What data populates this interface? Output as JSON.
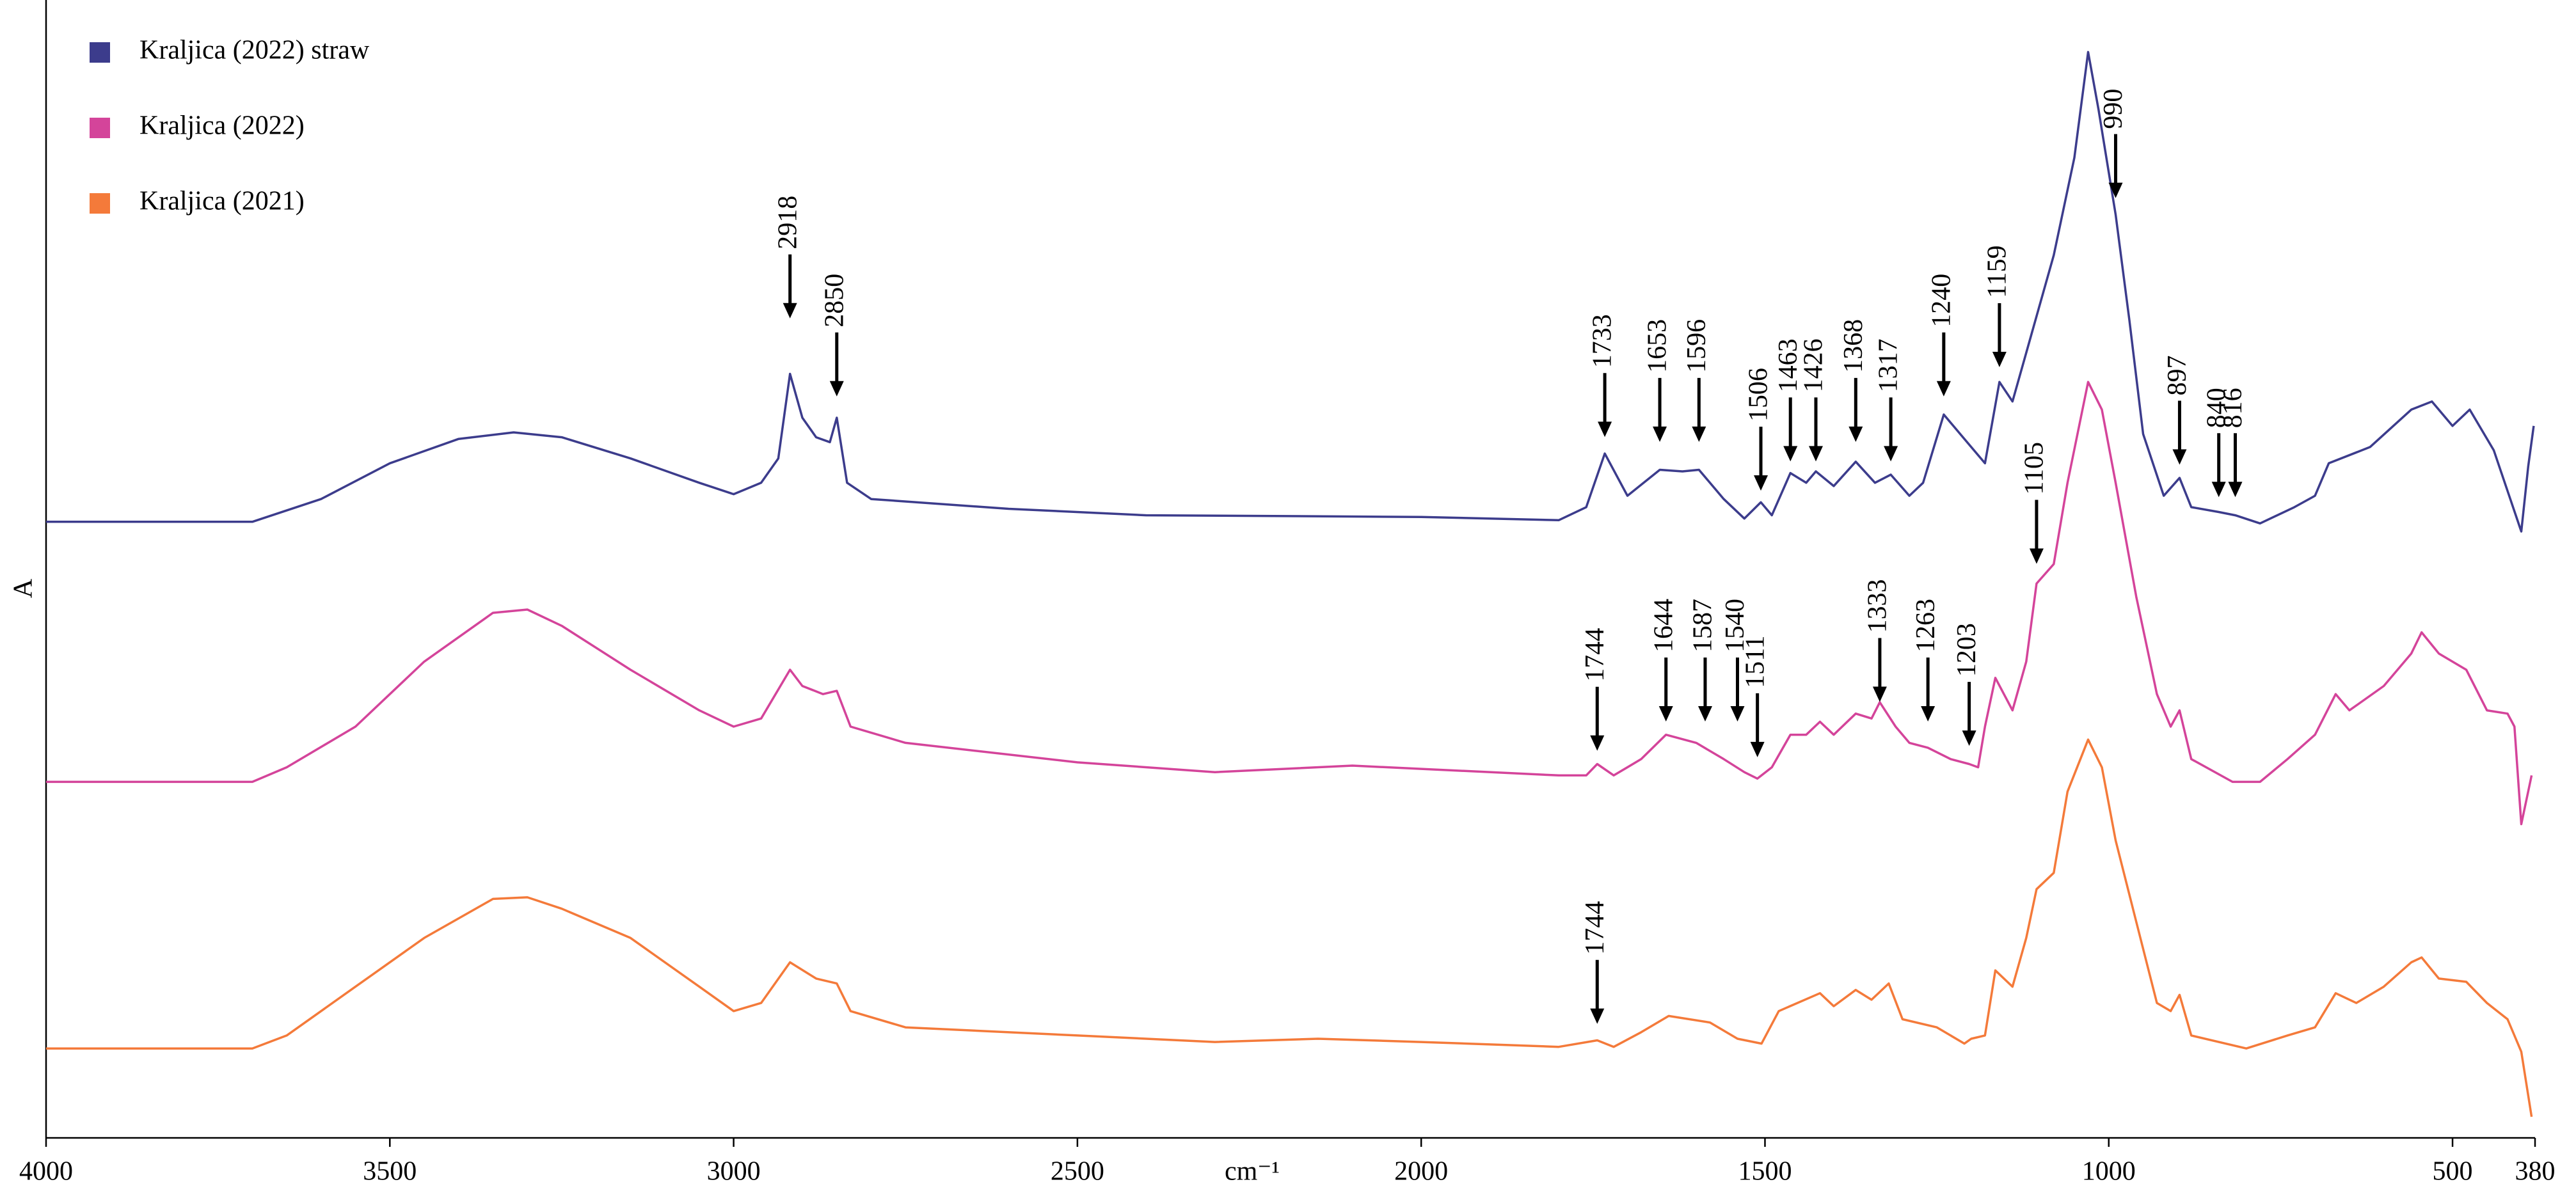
{
  "chart_data": {
    "type": "line",
    "xlabel": "cm⁻¹",
    "ylabel": "A",
    "xlim": [
      4000,
      380
    ],
    "xticks": [
      4000,
      3500,
      3000,
      2500,
      2000,
      1500,
      1000,
      500,
      380
    ],
    "ylim": [
      0,
      700
    ],
    "legend": "upper left",
    "series": [
      {
        "name": "Kraljica (2022) straw",
        "color": "#3c3c8c",
        "x": [
          4000,
          3700,
          3600,
          3500,
          3400,
          3320,
          3250,
          3150,
          3050,
          3000,
          2960,
          2935,
          2918,
          2900,
          2880,
          2860,
          2850,
          2835,
          2800,
          2600,
          2400,
          2000,
          1800,
          1760,
          1733,
          1700,
          1653,
          1620,
          1596,
          1560,
          1530,
          1506,
          1490,
          1463,
          1440,
          1426,
          1400,
          1368,
          1340,
          1317,
          1290,
          1270,
          1240,
          1210,
          1180,
          1159,
          1140,
          1120,
          1080,
          1050,
          1030,
          1015,
          990,
          970,
          950,
          920,
          897,
          880,
          840,
          816,
          780,
          730,
          700,
          680,
          620,
          560,
          530,
          500,
          475,
          440,
          420,
          400,
          390,
          382
        ],
        "values": [
          379,
          379,
          393,
          415,
          430,
          434,
          431,
          418,
          403,
          396,
          403,
          418,
          470,
          443,
          431,
          428,
          443,
          403,
          393,
          387,
          383,
          382,
          380,
          388,
          421,
          395,
          411,
          410,
          411,
          393,
          381,
          391,
          383,
          409,
          403,
          410,
          401,
          416,
          403,
          408,
          395,
          403,
          445,
          430,
          415,
          465,
          453,
          483,
          543,
          603,
          668,
          633,
          568,
          503,
          433,
          395,
          406,
          388,
          385,
          383,
          378,
          388,
          395,
          415,
          425,
          448,
          453,
          438,
          448,
          423,
          398,
          373,
          413,
          438
        ]
      },
      {
        "name": "Kraljica (2022)",
        "color": "#d4449a",
        "x": [
          4000,
          3700,
          3650,
          3550,
          3450,
          3350,
          3300,
          3250,
          3150,
          3050,
          3000,
          2960,
          2918,
          2900,
          2870,
          2850,
          2830,
          2750,
          2500,
          2300,
          2100,
          2000,
          1800,
          1760,
          1744,
          1720,
          1680,
          1644,
          1600,
          1560,
          1530,
          1511,
          1490,
          1463,
          1440,
          1420,
          1400,
          1368,
          1345,
          1333,
          1310,
          1290,
          1263,
          1230,
          1203,
          1190,
          1180,
          1165,
          1140,
          1120,
          1105,
          1080,
          1060,
          1030,
          1010,
          990,
          960,
          930,
          910,
          897,
          880,
          820,
          780,
          740,
          700,
          670,
          650,
          600,
          560,
          545,
          520,
          480,
          450,
          420,
          410,
          400,
          385
        ],
        "values": [
          219,
          219,
          228,
          253,
          293,
          323,
          325,
          315,
          288,
          263,
          253,
          258,
          288,
          278,
          273,
          275,
          253,
          243,
          231,
          225,
          229,
          227,
          223,
          223,
          230,
          223,
          233,
          248,
          243,
          233,
          225,
          221,
          228,
          248,
          248,
          256,
          248,
          261,
          258,
          268,
          253,
          243,
          240,
          233,
          230,
          228,
          253,
          283,
          263,
          293,
          341,
          353,
          403,
          465,
          448,
          403,
          333,
          273,
          253,
          263,
          233,
          219,
          219,
          233,
          248,
          273,
          263,
          278,
          298,
          311,
          298,
          288,
          263,
          261,
          253,
          193,
          223
        ]
      },
      {
        "name": "Kraljica (2021)",
        "color": "#f47a3a",
        "x": [
          4000,
          3700,
          3650,
          3550,
          3450,
          3350,
          3300,
          3250,
          3150,
          3050,
          3000,
          2960,
          2918,
          2880,
          2850,
          2830,
          2750,
          2500,
          2300,
          2150,
          2000,
          1800,
          1744,
          1720,
          1680,
          1640,
          1580,
          1540,
          1505,
          1480,
          1420,
          1400,
          1368,
          1345,
          1320,
          1300,
          1250,
          1210,
          1200,
          1180,
          1165,
          1140,
          1120,
          1105,
          1080,
          1060,
          1030,
          1010,
          990,
          960,
          930,
          910,
          897,
          880,
          800,
          740,
          700,
          670,
          640,
          600,
          560,
          545,
          520,
          480,
          450,
          420,
          400,
          385
        ],
        "values": [
          55,
          55,
          63,
          93,
          123,
          147,
          148,
          141,
          123,
          93,
          78,
          83,
          108,
          98,
          95,
          78,
          68,
          63,
          59,
          61,
          59,
          56,
          60,
          56,
          65,
          75,
          71,
          61,
          58,
          78,
          89,
          81,
          91,
          85,
          95,
          73,
          68,
          58,
          61,
          63,
          103,
          93,
          123,
          153,
          163,
          213,
          245,
          228,
          183,
          133,
          83,
          78,
          88,
          63,
          55,
          63,
          68,
          89,
          83,
          93,
          108,
          111,
          98,
          96,
          83,
          73,
          53,
          13
        ]
      }
    ],
    "annotations": [
      {
        "x": 2918,
        "y": 501
      },
      {
        "x": 2850,
        "y": 453
      },
      {
        "x": 1733,
        "y": 428
      },
      {
        "x": 1653,
        "y": 425
      },
      {
        "x": 1596,
        "y": 425
      },
      {
        "x": 1506,
        "y": 395
      },
      {
        "x": 1463,
        "y": 413
      },
      {
        "x": 1426,
        "y": 413
      },
      {
        "x": 1368,
        "y": 425
      },
      {
        "x": 1317,
        "y": 413
      },
      {
        "x": 1240,
        "y": 453
      },
      {
        "x": 1159,
        "y": 471
      },
      {
        "x": 990,
        "y": 575
      },
      {
        "x": 897,
        "y": 411
      },
      {
        "x": 840,
        "y": 391
      },
      {
        "x": 816,
        "y": 391
      },
      {
        "x": 1105,
        "y": 350
      },
      {
        "x": 1744,
        "y": 235
      },
      {
        "x": 1644,
        "y": 253
      },
      {
        "x": 1587,
        "y": 253
      },
      {
        "x": 1540,
        "y": 253
      },
      {
        "x": 1511,
        "y": 231
      },
      {
        "x": 1333,
        "y": 265
      },
      {
        "x": 1263,
        "y": 253
      },
      {
        "x": 1203,
        "y": 238
      },
      {
        "x": 1744,
        "y": 67
      }
    ]
  }
}
